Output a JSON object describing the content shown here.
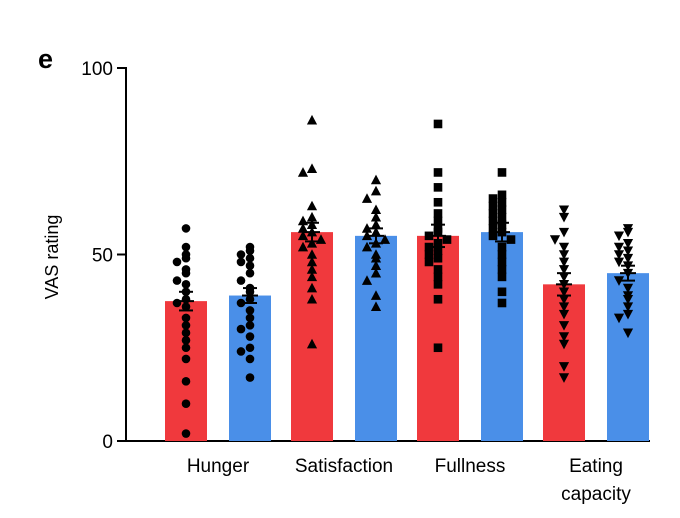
{
  "panel_label": "e",
  "chart_data": {
    "type": "bar",
    "title": "",
    "xlabel": "",
    "ylabel": "VAS rating",
    "ylim": [
      0,
      100
    ],
    "yticks": [
      0,
      50,
      100
    ],
    "categories": [
      {
        "lines": [
          "Hunger"
        ],
        "marker": "circle",
        "label_shape": "circle-marker"
      },
      {
        "lines": [
          "Satisfaction"
        ],
        "marker": "triangle-up",
        "label_shape": "triangle-up-marker"
      },
      {
        "lines": [
          "Fullness"
        ],
        "marker": "square",
        "label_shape": "square-marker"
      },
      {
        "lines": [
          "Eating",
          "capacity"
        ],
        "marker": "triangle-down",
        "label_shape": "triangle-down-marker"
      }
    ],
    "series": [
      {
        "color": "#f0393d"
      },
      {
        "color": "#4a8fe8"
      }
    ],
    "bars": [
      {
        "category": 0,
        "series": 0,
        "mean": 37.5,
        "sem": 2.5,
        "points": [
          57,
          52,
          50,
          49,
          48,
          46,
          45,
          43,
          42,
          40,
          38,
          37,
          36,
          33,
          31,
          29,
          27,
          25,
          22,
          16,
          10,
          2
        ]
      },
      {
        "category": 0,
        "series": 1,
        "mean": 39,
        "sem": 2.0,
        "points": [
          52,
          51,
          50,
          49,
          48,
          47,
          45,
          43,
          41,
          40,
          38,
          37,
          35,
          33,
          31,
          30,
          28,
          25,
          24,
          22,
          17
        ]
      },
      {
        "category": 1,
        "series": 0,
        "mean": 56,
        "sem": 2.5,
        "points": [
          86,
          73,
          72,
          63,
          60,
          59,
          58,
          57,
          56,
          55,
          54,
          53,
          52,
          50,
          48,
          46,
          44,
          41,
          38,
          26
        ]
      },
      {
        "category": 1,
        "series": 1,
        "mean": 55,
        "sem": 2.0,
        "points": [
          70,
          67,
          65,
          62,
          60,
          58,
          57,
          56,
          55,
          54,
          53,
          52,
          50,
          49,
          47,
          45,
          43,
          39,
          36
        ]
      },
      {
        "category": 2,
        "series": 0,
        "mean": 55,
        "sem": 3.0,
        "points": [
          85,
          72,
          68,
          64,
          61,
          59,
          57,
          56,
          55,
          54,
          53,
          52,
          51,
          50,
          49,
          48,
          46,
          44,
          42,
          38,
          25
        ]
      },
      {
        "category": 2,
        "series": 1,
        "mean": 56,
        "sem": 2.5,
        "points": [
          72,
          66,
          65,
          64,
          63,
          62,
          61,
          60,
          59,
          58,
          57,
          56,
          55,
          54,
          52,
          50,
          48,
          46,
          44,
          40,
          37
        ]
      },
      {
        "category": 3,
        "series": 0,
        "mean": 42,
        "sem": 3.0,
        "points": [
          62,
          60,
          56,
          54,
          52,
          50,
          48,
          46,
          44,
          42,
          40,
          38,
          36,
          34,
          31,
          28,
          26,
          20,
          17
        ]
      },
      {
        "category": 3,
        "series": 1,
        "mean": 45,
        "sem": 2.0,
        "points": [
          57,
          56,
          55,
          53,
          52,
          51,
          50,
          49,
          48,
          47,
          45,
          43,
          41,
          39,
          38,
          36,
          34,
          33,
          29
        ]
      }
    ]
  }
}
